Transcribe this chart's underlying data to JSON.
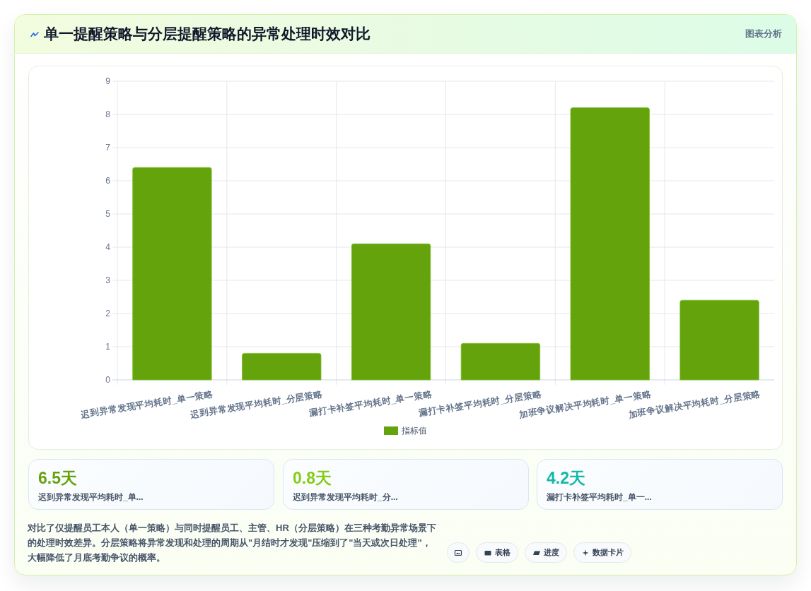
{
  "chart_data": [
    {
      "type": "bar",
      "title": "单一提醒策略与分层提醒策略的异常处理时效对比",
      "categories": [
        "迟到异常发现平均耗时_单一策略",
        "迟到异常发现平均耗时_分层策略",
        "漏打卡补签平均耗时_单一策略",
        "漏打卡补签平均耗时_分层策略",
        "加班争议解决平均耗时_单一策略",
        "加班争议解决平均耗时_分层策略"
      ],
      "series": [
        {
          "name": "指标值",
          "color": "#65a30d",
          "values": [
            6.4,
            0.8,
            4.1,
            1.1,
            8.2,
            2.4
          ]
        }
      ],
      "ylim": [
        0,
        9
      ],
      "yticks": [
        0,
        1,
        2,
        3,
        4,
        5,
        6,
        7,
        8,
        9
      ],
      "grid": true,
      "legend": "bottom",
      "annotations": [
        "图表分析"
      ]
    },
    {
      "type": "other",
      "annotations": [
        "6.5天",
        "迟到异常发现平均耗时_单...",
        "0.8天",
        "迟到异常发现平均耗时_分...",
        "4.2天",
        "漏打卡补签平均耗时_单一...",
        "对比了仅提醒员工本人（单一策略）与同时提醒员工、主管、HR（分层策略）在三种考勤异常场景下的处理时效差异。分层策略将异常发现和处理的周期从\"月结时才发现\"压缩到了\"当天或次日处理\"，大幅降低了月底考勤争议的概率。",
        "表格",
        "进度",
        "数据卡片"
      ]
    }
  ]
}
